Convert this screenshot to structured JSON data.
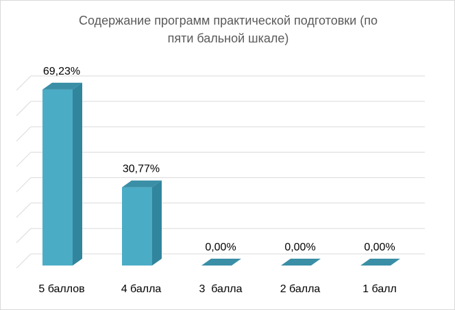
{
  "chart_data": {
    "type": "bar",
    "title_line1": "Содержание программ практической подготовки (по",
    "title_line2": "пяти бальной шкале)",
    "categories": [
      "5 баллов",
      "4 балла",
      "3  балла",
      "2 балла",
      "1 балл"
    ],
    "values": [
      69.23,
      30.77,
      0.0,
      0.0,
      0.0
    ],
    "data_labels": [
      "69,23%",
      "30,77%",
      "0,00%",
      "0,00%",
      "0,00%"
    ],
    "ylim": [
      0,
      70
    ],
    "grid": true,
    "legend": "none",
    "colors": {
      "front": "#4bacc6",
      "side": "#31859c",
      "top": "#3a8fa6",
      "grid": "#d9d9d9"
    }
  }
}
